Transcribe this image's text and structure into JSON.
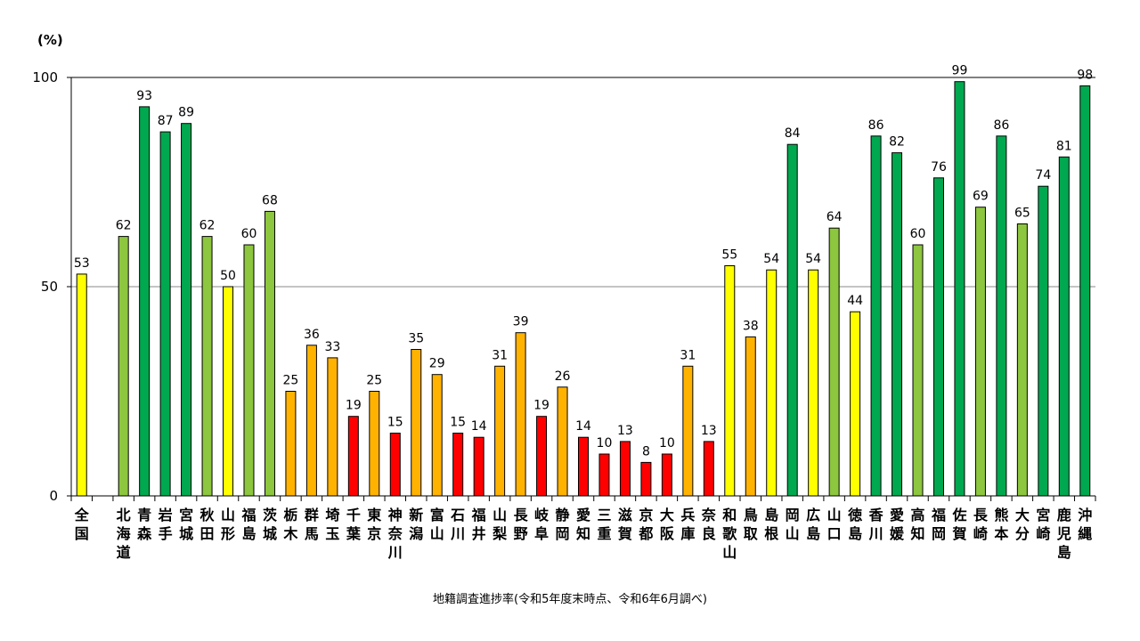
{
  "caption": "地籍調査進捗率(令和5年度末時点、令和6年6月調べ)",
  "chart_data": {
    "type": "bar",
    "yunit": "(%)",
    "ylim": [
      0,
      100
    ],
    "yticks": [
      0,
      50,
      100
    ],
    "gridlines": [
      50,
      100
    ],
    "categories": [
      "全国",
      "",
      "北海道",
      "青森",
      "岩手",
      "宮城",
      "秋田",
      "山形",
      "福島",
      "茨城",
      "栃木",
      "群馬",
      "埼玉",
      "千葉",
      "東京",
      "神奈川",
      "新潟",
      "富山",
      "石川",
      "福井",
      "山梨",
      "長野",
      "岐阜",
      "静岡",
      "愛知",
      "三重",
      "滋賀",
      "京都",
      "大阪",
      "兵庫",
      "奈良",
      "和歌山",
      "鳥取",
      "島根",
      "岡山",
      "広島",
      "山口",
      "徳島",
      "香川",
      "愛媛",
      "高知",
      "福岡",
      "佐賀",
      "長崎",
      "熊本",
      "大分",
      "宮崎",
      "鹿児島",
      "沖縄"
    ],
    "values": [
      53,
      null,
      62,
      93,
      87,
      89,
      62,
      50,
      60,
      68,
      25,
      36,
      33,
      19,
      25,
      15,
      35,
      29,
      15,
      14,
      31,
      39,
      19,
      26,
      14,
      10,
      13,
      8,
      10,
      31,
      13,
      55,
      38,
      54,
      84,
      54,
      64,
      44,
      86,
      82,
      60,
      76,
      99,
      69,
      86,
      65,
      74,
      81,
      98
    ],
    "colors": {
      "dark_green": "#00A84F",
      "light_green": "#8DC63F",
      "yellow": "#FFFF00",
      "orange": "#FFB300",
      "red": "#FF0000"
    }
  }
}
